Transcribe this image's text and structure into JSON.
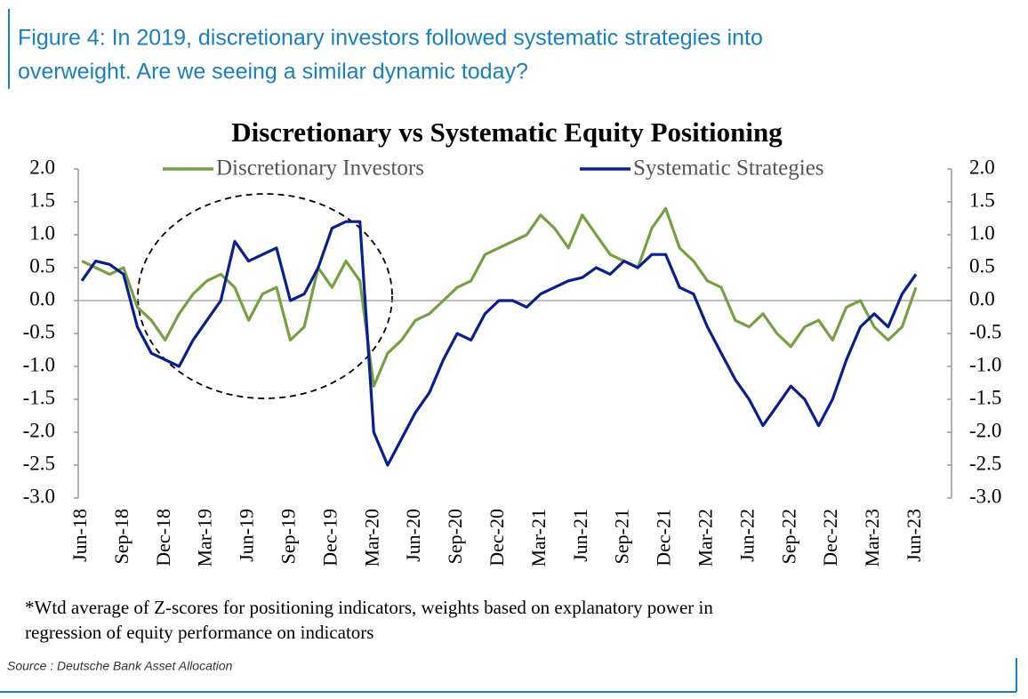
{
  "caption": [
    "Figure 4: In 2019, discretionary investors followed systematic strategies into",
    "overweight. Are we seeing a similar dynamic today?"
  ],
  "chart_data": {
    "type": "line",
    "title": "Discretionary vs Systematic Equity Positioning",
    "categories": [
      "Jun-18",
      null,
      null,
      "Sep-18",
      null,
      null,
      "Dec-18",
      null,
      null,
      "Mar-19",
      null,
      null,
      "Jun-19",
      null,
      null,
      "Sep-19",
      null,
      null,
      "Dec-19",
      null,
      null,
      "Mar-20",
      null,
      null,
      "Jun-20",
      null,
      null,
      "Sep-20",
      null,
      null,
      "Dec-20",
      null,
      null,
      "Mar-21",
      null,
      null,
      "Jun-21",
      null,
      null,
      "Sep-21",
      null,
      null,
      "Dec-21",
      null,
      null,
      "Mar-22",
      null,
      null,
      "Jun-22",
      null,
      null,
      "Sep-22",
      null,
      null,
      "Dec-22",
      null,
      null,
      "Mar-23",
      null,
      null,
      "Jun-23"
    ],
    "series": [
      {
        "name": "Discretionary Investors",
        "color": "#77a043",
        "values": [
          0.6,
          0.5,
          0.4,
          0.5,
          -0.1,
          -0.3,
          -0.6,
          -0.2,
          0.1,
          0.3,
          0.4,
          0.2,
          -0.3,
          0.1,
          0.2,
          -0.6,
          -0.4,
          0.5,
          0.2,
          0.6,
          0.3,
          -1.3,
          -0.8,
          -0.6,
          -0.3,
          -0.2,
          0.0,
          0.2,
          0.3,
          0.7,
          0.8,
          0.9,
          1.0,
          1.3,
          1.1,
          0.8,
          1.3,
          1.0,
          0.7,
          0.6,
          0.5,
          1.1,
          1.4,
          0.8,
          0.6,
          0.3,
          0.2,
          -0.3,
          -0.4,
          -0.2,
          -0.5,
          -0.7,
          -0.4,
          -0.3,
          -0.6,
          -0.1,
          0.0,
          -0.4,
          -0.6,
          -0.4,
          0.2
        ]
      },
      {
        "name": "Systematic Strategies",
        "color": "#0a1f8f",
        "values": [
          0.3,
          0.6,
          0.55,
          0.4,
          -0.4,
          -0.8,
          -0.9,
          -1.0,
          -0.6,
          -0.3,
          0.0,
          0.9,
          0.6,
          0.7,
          0.8,
          0.0,
          0.1,
          0.5,
          1.1,
          1.2,
          1.2,
          -2.0,
          -2.5,
          -2.1,
          -1.7,
          -1.4,
          -0.9,
          -0.5,
          -0.6,
          -0.2,
          0.0,
          0.0,
          -0.1,
          0.1,
          0.2,
          0.3,
          0.35,
          0.5,
          0.4,
          0.6,
          0.5,
          0.7,
          0.7,
          0.2,
          0.1,
          -0.4,
          -0.8,
          -1.2,
          -1.5,
          -1.9,
          -1.6,
          -1.3,
          -1.5,
          -1.9,
          -1.5,
          -0.9,
          -0.4,
          -0.2,
          -0.4,
          0.1,
          0.4
        ]
      }
    ],
    "ylim": [
      -3,
      2
    ],
    "yticks": [
      {
        "value": 2,
        "label": "2.0"
      },
      1.5,
      {
        "value": 1,
        "label": "1.0"
      },
      0.5,
      {
        "value": 0,
        "label": "0.0"
      },
      -0.5,
      {
        "value": -1,
        "label": "-1.0"
      },
      -1.5,
      {
        "value": -2,
        "label": "-2.0"
      },
      -2.5,
      {
        "value": -3,
        "label": "-3.0"
      }
    ],
    "y2lim": [
      -3,
      2
    ],
    "y2ticks": [
      {
        "value": 2,
        "label": "2.0"
      },
      1.5,
      {
        "value": 1,
        "label": "1.0"
      },
      0.5,
      {
        "value": 0,
        "label": "0.0"
      },
      -0.5,
      {
        "value": -1,
        "label": "-1.0"
      },
      -1.5,
      {
        "value": -2,
        "label": "-2.0"
      },
      -2.5,
      {
        "value": -3,
        "label": "-3.0"
      }
    ],
    "grid": false
  },
  "footnote": [
    "*Wtd average of Z-scores for positioning indicators, weights based on explanatory power in",
    "regression of equity performance on indicators"
  ],
  "source": "Source : Deutsche Bank Asset Allocation"
}
